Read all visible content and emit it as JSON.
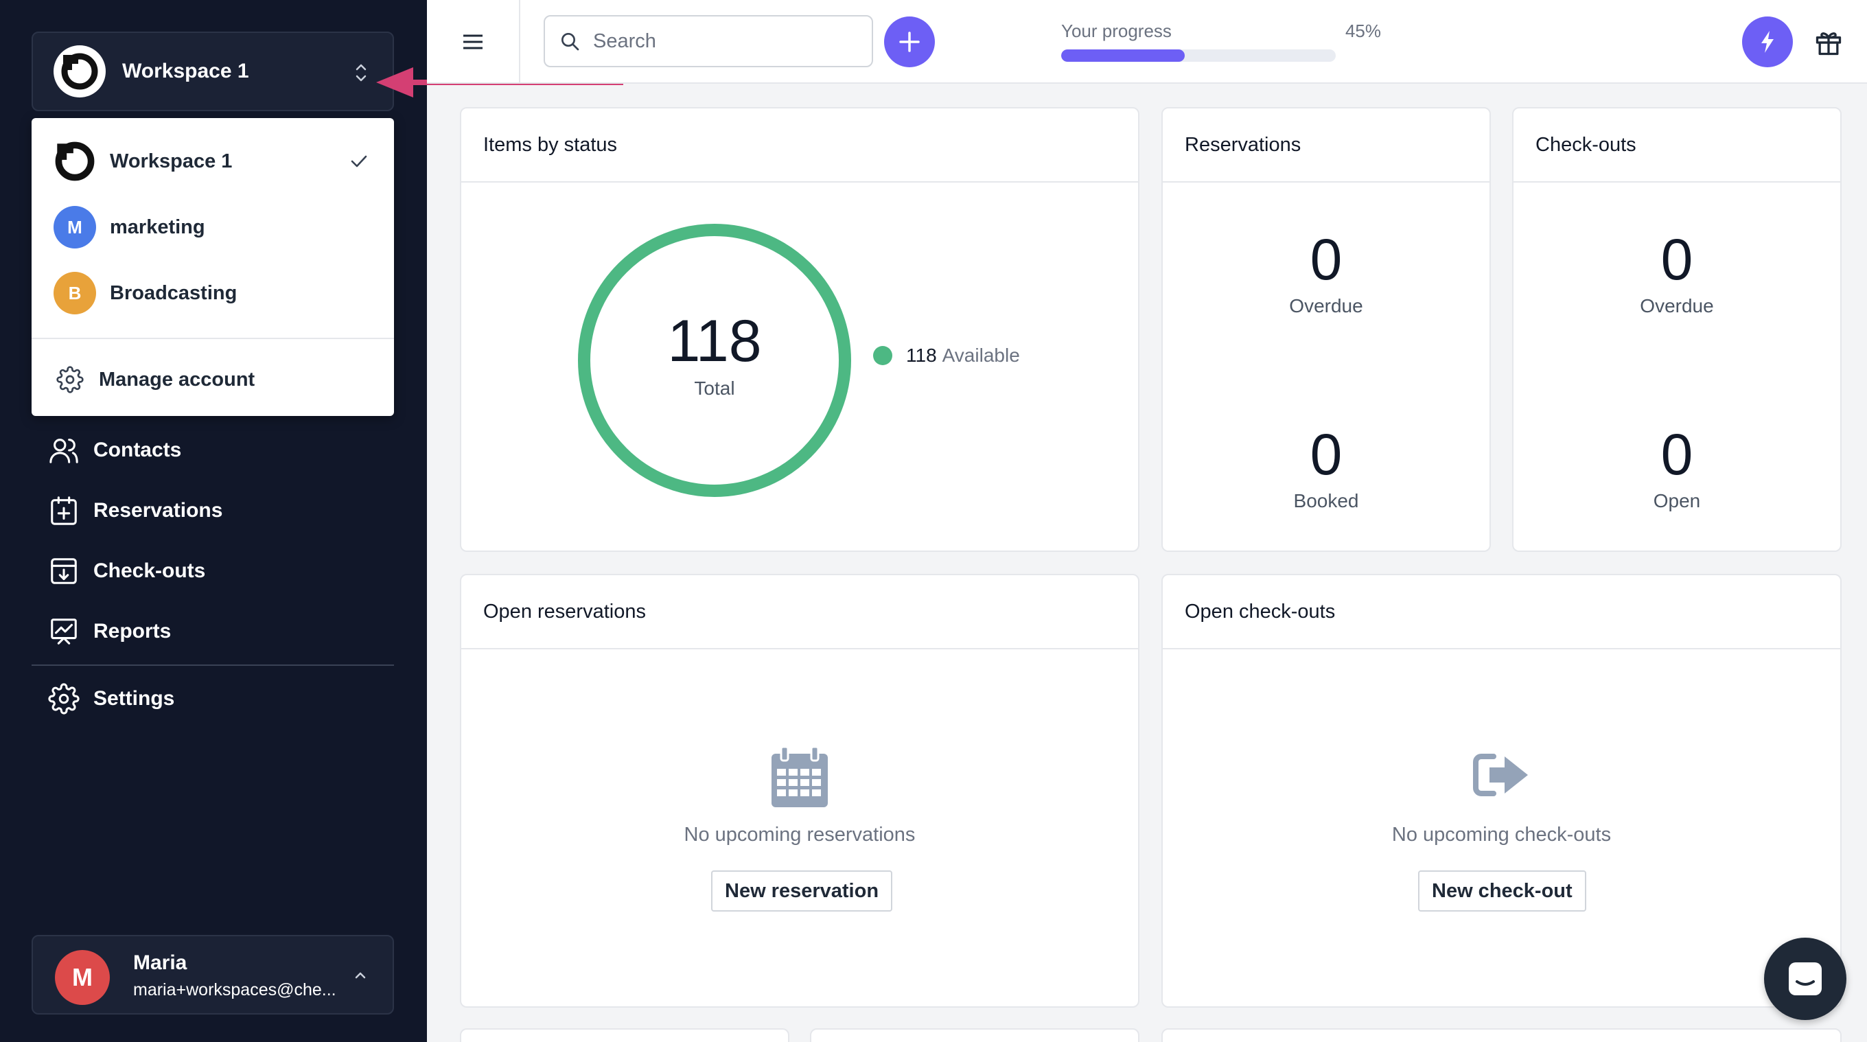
{
  "sidebar": {
    "workspace_switcher": {
      "name": "Workspace 1"
    },
    "dropdown": {
      "workspaces": [
        {
          "label": "Workspace 1",
          "selected": true
        },
        {
          "label": "marketing",
          "initial": "M",
          "color": "#4a7be8"
        },
        {
          "label": "Broadcasting",
          "initial": "B",
          "color": "#e8a23a"
        }
      ],
      "manage_account": "Manage account"
    },
    "nav": [
      {
        "label": "Contacts",
        "icon": "users-icon"
      },
      {
        "label": "Reservations",
        "icon": "calendar-plus-icon"
      },
      {
        "label": "Check-outs",
        "icon": "tray-down-icon"
      },
      {
        "label": "Reports",
        "icon": "chart-presentation-icon"
      },
      {
        "label": "Settings",
        "icon": "gear-icon"
      }
    ],
    "user": {
      "initial": "M",
      "name": "Maria",
      "email": "maria+workspaces@che..."
    }
  },
  "topbar": {
    "search_placeholder": "Search",
    "progress": {
      "label": "Your progress",
      "value": "45%",
      "fraction": 0.45
    }
  },
  "cards": {
    "items_by_status": {
      "title": "Items by status",
      "total": "118",
      "total_label": "Total",
      "legend_count": "118",
      "legend_label": "Available"
    },
    "reservations": {
      "title": "Reservations",
      "stat1": "0",
      "stat1_label": "Overdue",
      "stat2": "0",
      "stat2_label": "Booked"
    },
    "checkouts": {
      "title": "Check-outs",
      "stat1": "0",
      "stat1_label": "Overdue",
      "stat2": "0",
      "stat2_label": "Open"
    },
    "open_reservations": {
      "title": "Open reservations",
      "empty": "No upcoming reservations",
      "button": "New reservation"
    },
    "open_checkouts": {
      "title": "Open check-outs",
      "empty": "No upcoming check-outs",
      "button": "New check-out"
    }
  },
  "colors": {
    "sidebar_bg": "#111729",
    "accent": "#6d5ff5",
    "available": "#4db883",
    "user_avatar": "#dc4a4a"
  }
}
